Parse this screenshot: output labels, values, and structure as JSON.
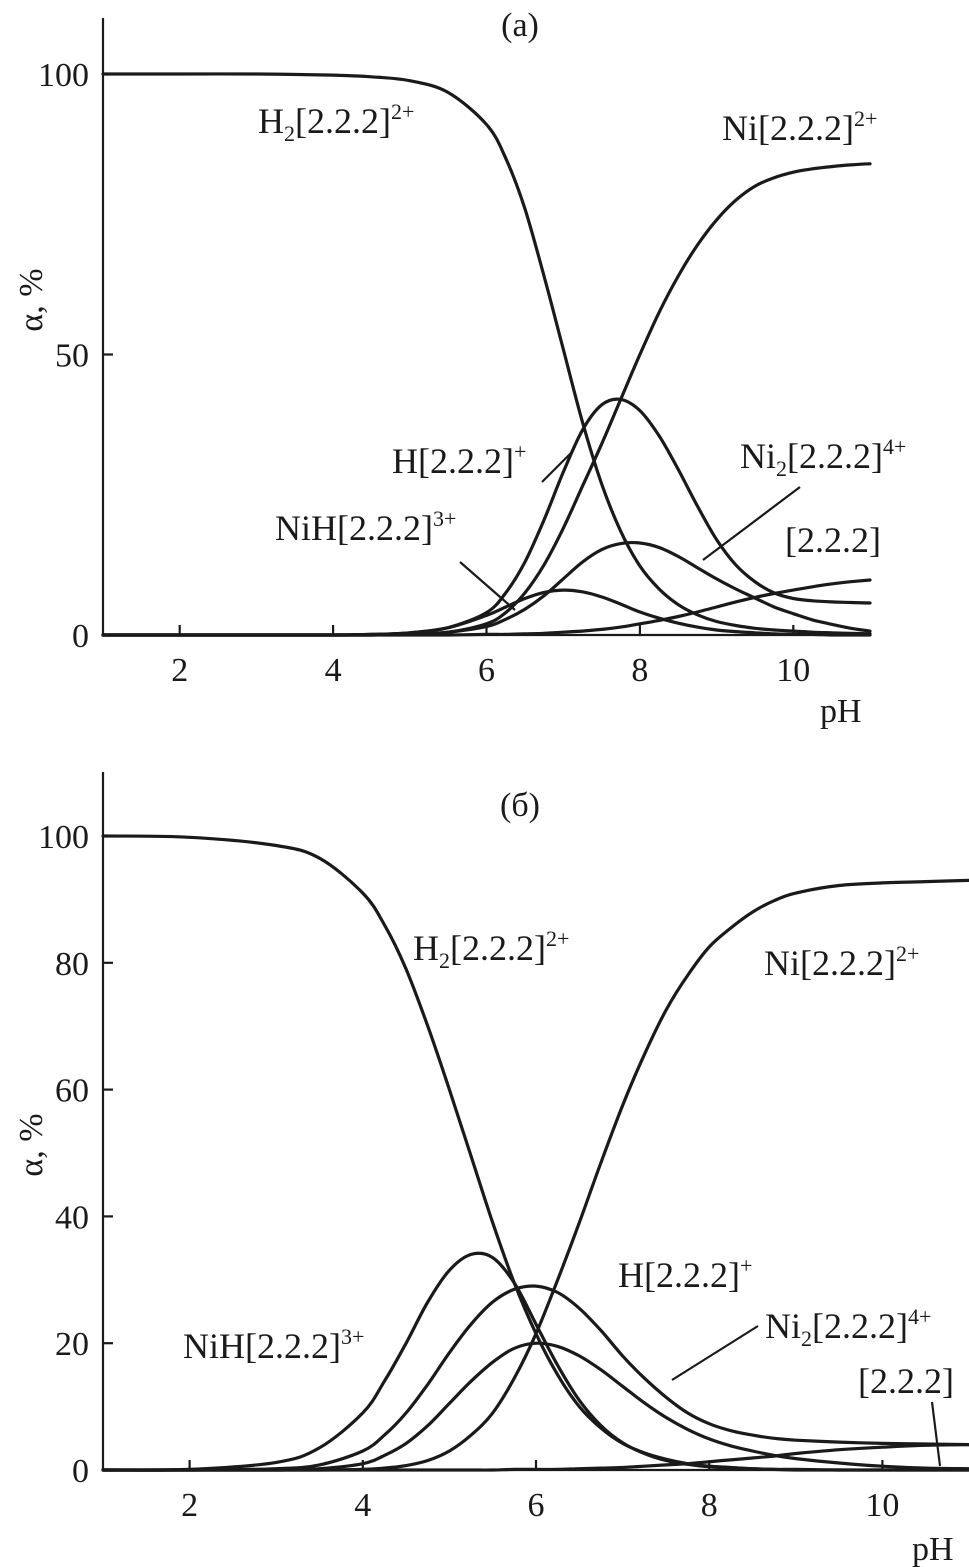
{
  "chart_data": [
    {
      "panel": "(a)",
      "type": "line",
      "xlabel": "pH",
      "ylabel": "α, %",
      "xlim": [
        1,
        11
      ],
      "ylim": [
        0,
        110
      ],
      "xticks": [
        2,
        4,
        6,
        8,
        10
      ],
      "yticks": [
        0,
        50,
        100
      ],
      "grid": false,
      "x": [
        1,
        2,
        3,
        4,
        4.5,
        5,
        5.5,
        6,
        6.25,
        6.5,
        6.75,
        7,
        7.25,
        7.5,
        7.75,
        8,
        8.25,
        8.5,
        8.75,
        9,
        9.25,
        9.5,
        9.75,
        10,
        10.25,
        10.5,
        10.75,
        11
      ],
      "series": [
        {
          "name": "H₂[2.2.2]²⁺",
          "values": [
            100,
            100,
            100,
            99.8,
            99.5,
            98.8,
            96.7,
            91,
            85,
            76,
            64,
            51,
            38,
            27,
            18.5,
            12.3,
            8.2,
            5.4,
            3.6,
            2.4,
            1.7,
            1.2,
            0.9,
            0.7,
            0.5,
            0.4,
            0.3,
            0.2
          ]
        },
        {
          "name": "Ni[2.2.2]²⁺",
          "values": [
            0,
            0,
            0,
            0,
            0,
            0.1,
            0.5,
            2,
            4,
            7.5,
            12.5,
            19,
            26.5,
            34,
            42,
            50,
            57.5,
            64,
            69.5,
            74,
            77.5,
            80,
            81.5,
            82.5,
            83.1,
            83.5,
            83.8,
            84
          ]
        },
        {
          "name": "H[2.2.2]⁺",
          "values": [
            0,
            0,
            0,
            0,
            0.1,
            0.4,
            1.3,
            4,
            7.5,
            13,
            20.5,
            29,
            36.5,
            41,
            42,
            40,
            35.5,
            29.5,
            23,
            17,
            12.5,
            9.5,
            7.5,
            6.5,
            6.1,
            5.9,
            5.8,
            5.7
          ]
        },
        {
          "name": "Ni₂[2.2.2]⁴⁺",
          "values": [
            0,
            0,
            0,
            0,
            0,
            0.1,
            0.5,
            1.5,
            2.8,
            4.6,
            7,
            10,
            13,
            15.2,
            16.3,
            16.4,
            15.6,
            14,
            12,
            10,
            8.2,
            6.6,
            5,
            3.8,
            2.7,
            1.9,
            1.2,
            0.7
          ]
        },
        {
          "name": "NiH[2.2.2]³⁺",
          "values": [
            0,
            0,
            0,
            0,
            0.1,
            0.4,
            1.3,
            3.5,
            5,
            6.5,
            7.6,
            8,
            7.7,
            6.8,
            5.5,
            4.1,
            3,
            2.1,
            1.4,
            0.9,
            0.6,
            0.4,
            0.2,
            0.1,
            0.1,
            0,
            0,
            0
          ]
        },
        {
          "name": "[2.2.2]",
          "values": [
            0,
            0,
            0,
            0,
            0,
            0,
            0,
            0.1,
            0.1,
            0.2,
            0.3,
            0.5,
            0.7,
            1,
            1.4,
            2,
            2.6,
            3.3,
            4.1,
            5,
            5.9,
            6.7,
            7.4,
            8,
            8.6,
            9.1,
            9.5,
            9.8
          ]
        }
      ]
    },
    {
      "panel": "(б)",
      "type": "line",
      "xlabel": "pH",
      "ylabel": "α, %",
      "xlim": [
        1,
        11
      ],
      "ylim": [
        0,
        110
      ],
      "xticks": [
        2,
        4,
        6,
        8,
        10
      ],
      "yticks": [
        0,
        20,
        40,
        60,
        80,
        100
      ],
      "grid": false,
      "x": [
        1,
        2,
        3,
        3.5,
        4,
        4.25,
        4.5,
        4.75,
        5,
        5.25,
        5.5,
        5.75,
        6,
        6.25,
        6.5,
        6.75,
        7,
        7.25,
        7.5,
        7.75,
        8,
        8.25,
        8.5,
        8.75,
        9,
        9.5,
        10,
        10.5,
        11
      ],
      "series": [
        {
          "name": "H₂[2.2.2]²⁺",
          "values": [
            100,
            99.8,
            98.5,
            96.5,
            91,
            86,
            79,
            70,
            60,
            49.5,
            39,
            29.5,
            21.5,
            15,
            10,
            6.6,
            4.2,
            2.7,
            1.7,
            1,
            0.6,
            0.4,
            0.2,
            0.1,
            0.1,
            0,
            0,
            0,
            0
          ]
        },
        {
          "name": "Ni[2.2.2]²⁺",
          "values": [
            0,
            0,
            0,
            0,
            0.1,
            0.3,
            0.7,
            1.5,
            3,
            5.5,
            9,
            14.5,
            21.5,
            30,
            39,
            48.5,
            57.5,
            65.5,
            72.5,
            78,
            82.5,
            85.5,
            88,
            89.8,
            91,
            92.2,
            92.6,
            92.8,
            93
          ]
        },
        {
          "name": "NiH[2.2.2]³⁺",
          "values": [
            0,
            0.1,
            1.2,
            3.5,
            9,
            14,
            20,
            26.5,
            31.5,
            34,
            33.5,
            29.5,
            23,
            16.5,
            11,
            7,
            4.3,
            2.6,
            1.5,
            0.9,
            0.5,
            0.3,
            0.2,
            0.1,
            0,
            0,
            0,
            0,
            0
          ]
        },
        {
          "name": "H[2.2.2]⁺",
          "values": [
            0,
            0,
            0.2,
            0.8,
            3,
            5.5,
            9,
            13.5,
            18.5,
            23,
            26.5,
            28.5,
            29,
            28,
            25.5,
            22,
            18,
            14.5,
            11.5,
            9,
            7.3,
            6.2,
            5.5,
            5,
            4.7,
            4.4,
            4.2,
            4.1,
            4
          ]
        },
        {
          "name": "Ni₂[2.2.2]⁴⁺",
          "values": [
            0,
            0,
            0,
            0.2,
            1,
            2.3,
            4.2,
            7,
            10.5,
            14,
            17,
            19.2,
            20,
            19.5,
            18,
            15.8,
            13.2,
            10.6,
            8.3,
            6.4,
            4.9,
            3.8,
            3,
            2.3,
            1.8,
            1.1,
            0.6,
            0.3,
            0.2
          ]
        },
        {
          "name": "[2.2.2]",
          "values": [
            0,
            0,
            0,
            0,
            0,
            0,
            0,
            0,
            0,
            0,
            0,
            0.1,
            0.1,
            0.1,
            0.2,
            0.3,
            0.4,
            0.6,
            0.8,
            1,
            1.3,
            1.6,
            1.9,
            2.2,
            2.6,
            3.2,
            3.6,
            3.9,
            4
          ]
        }
      ]
    }
  ]
}
